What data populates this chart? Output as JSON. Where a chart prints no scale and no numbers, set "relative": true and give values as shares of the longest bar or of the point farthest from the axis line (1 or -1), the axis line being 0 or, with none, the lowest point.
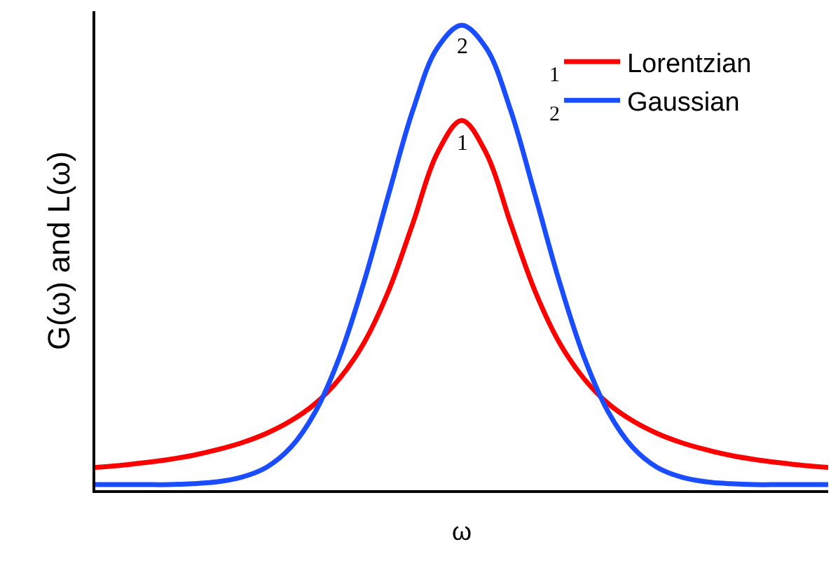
{
  "chart_data": {
    "type": "line",
    "relative": true,
    "xlabel": "ω",
    "ylabel": "G(ω) and L(ω)",
    "categories": [
      null,
      null,
      null,
      null,
      null,
      null,
      null,
      null,
      null,
      null,
      null,
      null,
      null,
      null,
      null,
      null,
      null,
      null,
      null,
      null,
      null,
      null,
      null,
      null,
      null,
      null,
      null,
      null,
      null,
      null,
      null
    ],
    "series": [
      {
        "name": "Lorentzian",
        "color": "#ff0000",
        "values": [
          0.049,
          0.053,
          0.059,
          0.066,
          0.075,
          0.087,
          0.102,
          0.122,
          0.149,
          0.186,
          0.24,
          0.317,
          0.428,
          0.574,
          0.725,
          0.795,
          0.725,
          0.574,
          0.428,
          0.317,
          0.24,
          0.186,
          0.149,
          0.122,
          0.102,
          0.087,
          0.075,
          0.066,
          0.059,
          0.053,
          0.049
        ]
      },
      {
        "name": "Gaussian",
        "color": "#1a4dff",
        "values": [
          0.012,
          0.012,
          0.012,
          0.012,
          0.014,
          0.018,
          0.028,
          0.049,
          0.092,
          0.168,
          0.287,
          0.448,
          0.635,
          0.817,
          0.951,
          1.0,
          0.951,
          0.817,
          0.635,
          0.448,
          0.287,
          0.168,
          0.092,
          0.049,
          0.028,
          0.018,
          0.014,
          0.012,
          0.012,
          0.012,
          0.012
        ]
      }
    ],
    "annotations": [
      {
        "text": "1",
        "y": 0.795
      },
      {
        "text": "2",
        "y": 1.0
      },
      "1",
      "2"
    ],
    "legend": "top right",
    "marker": "none",
    "line_style": "solid"
  }
}
